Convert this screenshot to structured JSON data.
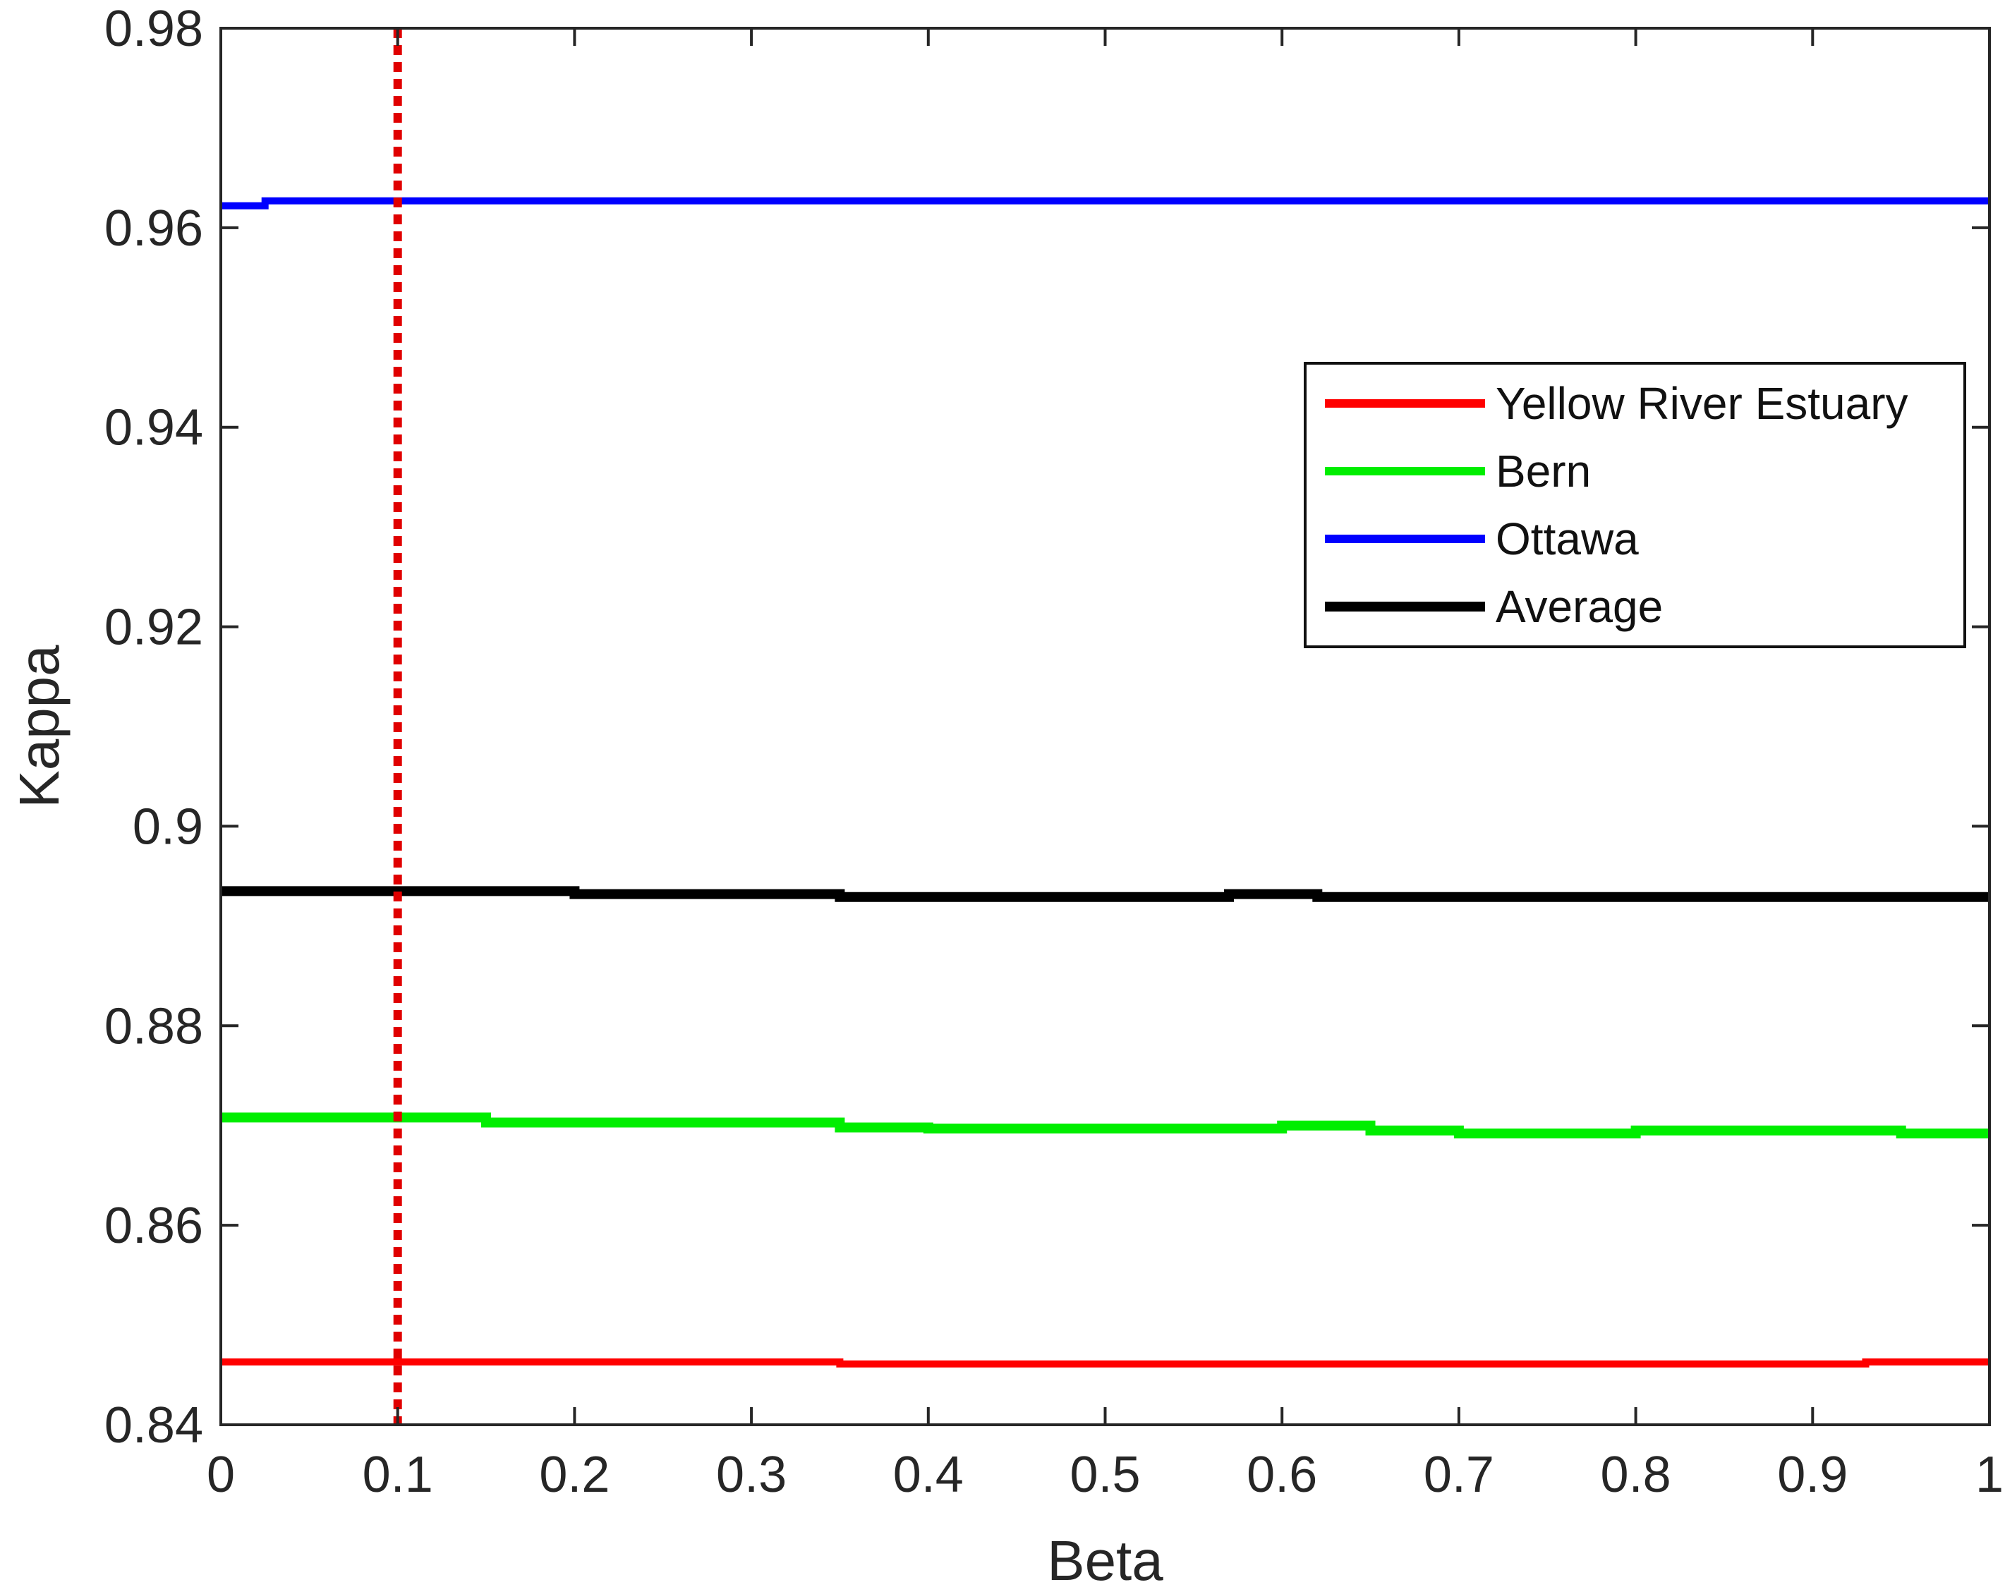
{
  "chart_data": {
    "type": "line",
    "xlabel": "Beta",
    "ylabel": "Kappa",
    "xlim": [
      0,
      1
    ],
    "ylim": [
      0.84,
      0.98
    ],
    "xticks": [
      "0",
      "0.1",
      "0.2",
      "0.3",
      "0.4",
      "0.5",
      "0.6",
      "0.7",
      "0.8",
      "0.9",
      "1"
    ],
    "yticks": [
      "0.84",
      "0.86",
      "0.88",
      "0.9",
      "0.92",
      "0.94",
      "0.96",
      "0.98"
    ],
    "grid": false,
    "legend_position": "upper-right",
    "reference_line": {
      "x": 0.1,
      "color": "#e00000",
      "style": "dotted"
    },
    "series": [
      {
        "name": "Yellow River Estuary",
        "color": "#ff0000",
        "x": [
          0,
          0.1,
          0.2,
          0.3,
          0.35,
          0.4,
          0.5,
          0.6,
          0.7,
          0.8,
          0.9,
          0.93,
          1
        ],
        "y": [
          0.8463,
          0.8463,
          0.8463,
          0.8463,
          0.8461,
          0.8461,
          0.8461,
          0.8461,
          0.8461,
          0.8461,
          0.8461,
          0.8463,
          0.8463
        ]
      },
      {
        "name": "Bern",
        "color": "#00ee00",
        "x": [
          0,
          0.1,
          0.15,
          0.2,
          0.3,
          0.35,
          0.4,
          0.5,
          0.6,
          0.65,
          0.7,
          0.8,
          0.9,
          0.95,
          1
        ],
        "y": [
          0.8708,
          0.8708,
          0.8703,
          0.8703,
          0.8703,
          0.8698,
          0.8697,
          0.8697,
          0.87,
          0.8695,
          0.8692,
          0.8695,
          0.8695,
          0.8692,
          0.8692
        ]
      },
      {
        "name": "Ottawa",
        "color": "#0000ff",
        "x": [
          0,
          0.025,
          0.1,
          0.2,
          0.3,
          0.4,
          0.5,
          0.6,
          0.7,
          0.8,
          0.9,
          1
        ],
        "y": [
          0.9622,
          0.9627,
          0.9627,
          0.9627,
          0.9627,
          0.9627,
          0.9627,
          0.9627,
          0.9627,
          0.9627,
          0.9627,
          0.9627
        ]
      },
      {
        "name": "Average",
        "color": "#000000",
        "x": [
          0,
          0.1,
          0.18,
          0.2,
          0.3,
          0.35,
          0.4,
          0.5,
          0.57,
          0.6,
          0.62,
          0.7,
          0.8,
          0.9,
          1
        ],
        "y": [
          0.8935,
          0.8935,
          0.8935,
          0.8932,
          0.8932,
          0.8929,
          0.8929,
          0.8929,
          0.8932,
          0.8932,
          0.8929,
          0.8929,
          0.8929,
          0.8929,
          0.8929
        ]
      }
    ]
  }
}
